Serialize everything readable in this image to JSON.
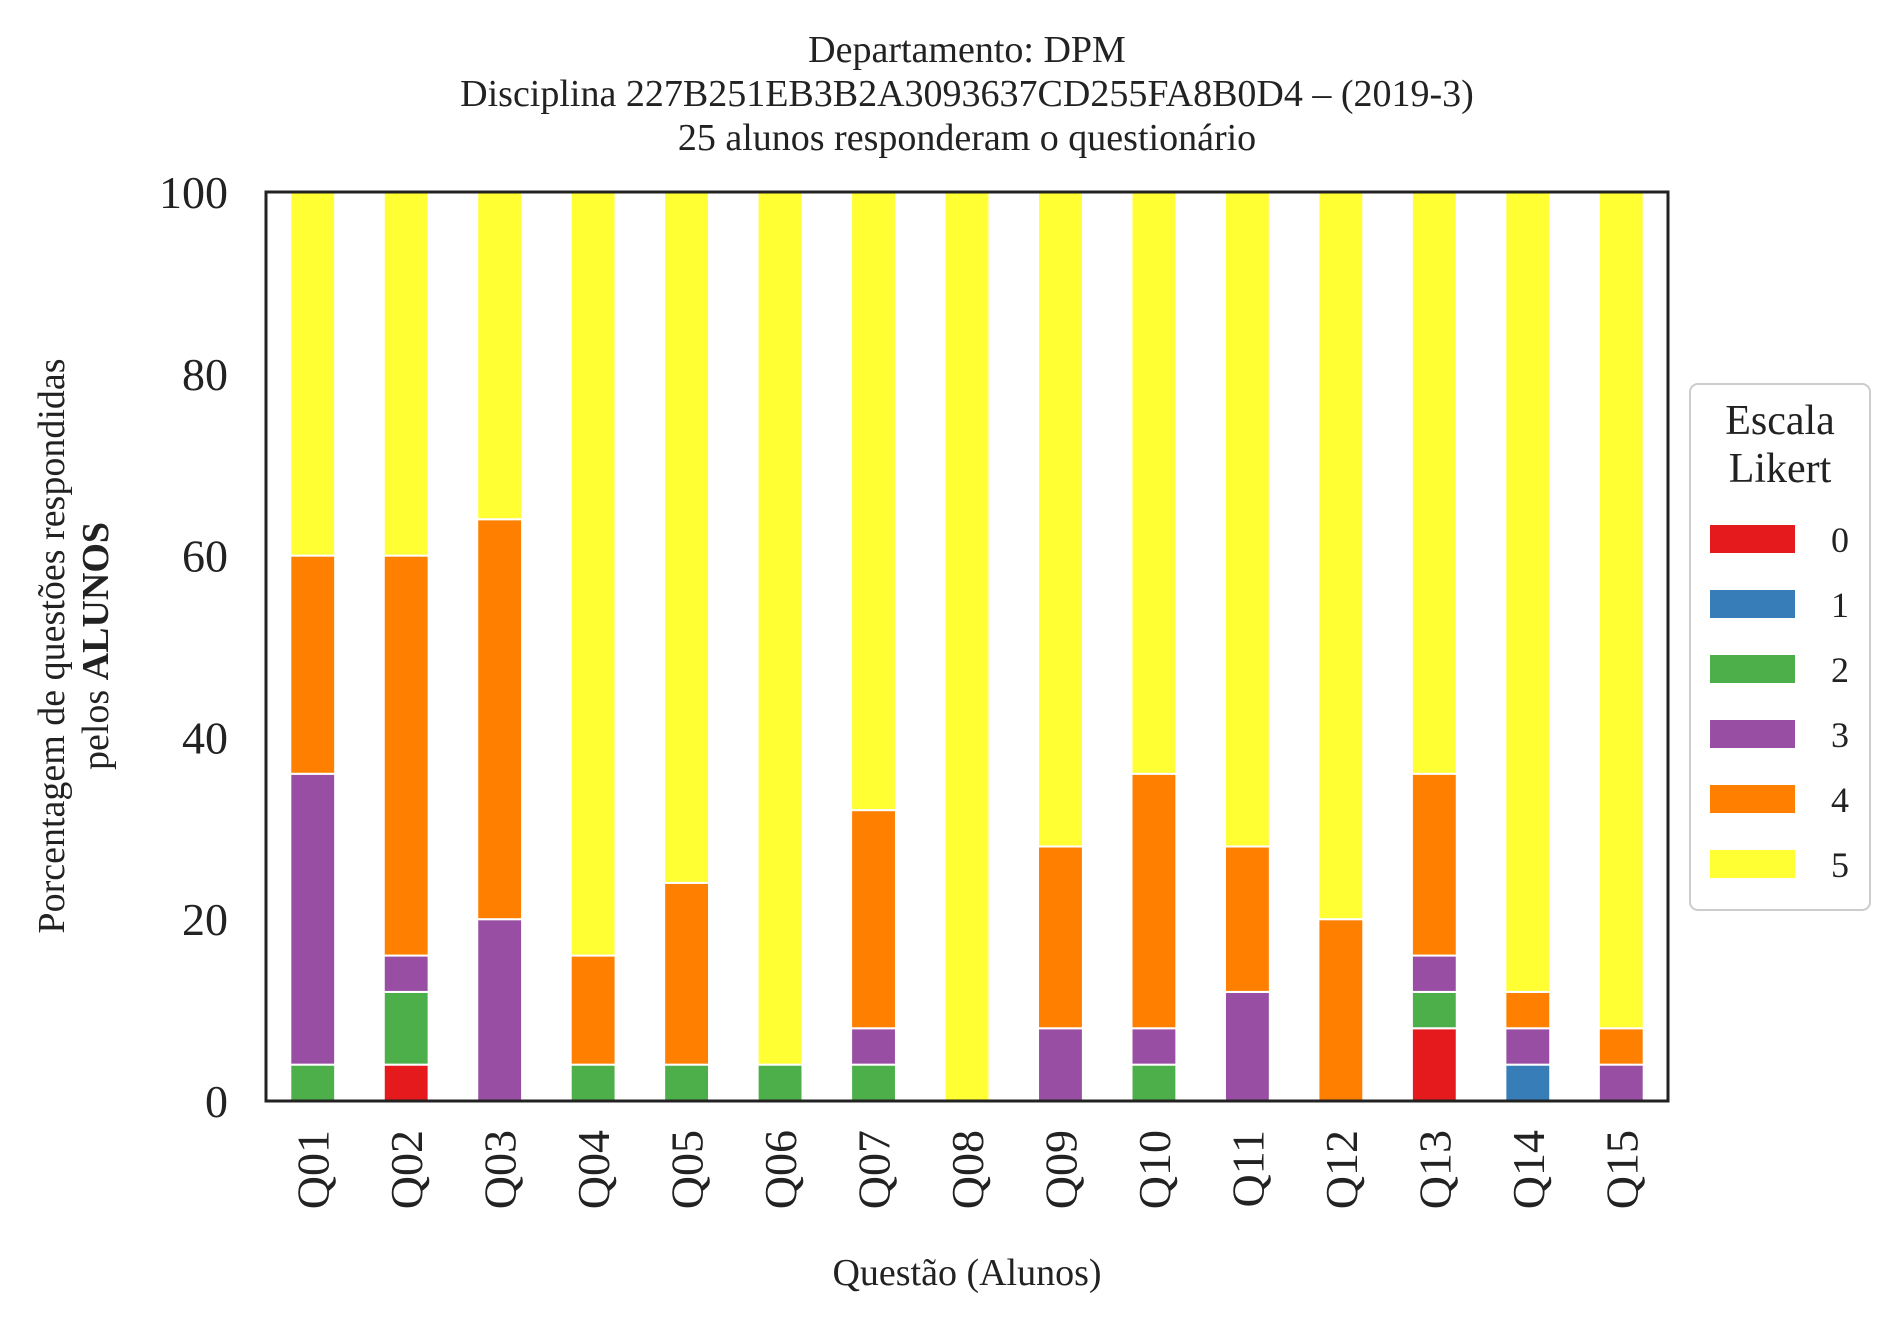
{
  "chart_data": {
    "type": "bar",
    "stacked": true,
    "title_lines": [
      "Departamento: DPM",
      "Disciplina 227B251EB3B2A3093637CD255FA8B0D4 – (2019-3)",
      "25 alunos responderam o questionário"
    ],
    "xlabel": "Questão (Alunos)",
    "ylabel_line1": "Porcentagem de questões respondidas",
    "ylabel_line2_prefix": "pelos ",
    "ylabel_line2_bold": "ALUNOS",
    "ylim": [
      0,
      100
    ],
    "yticks": [
      "0",
      "20",
      "40",
      "60",
      "80",
      "100"
    ],
    "categories": [
      "Q01",
      "Q02",
      "Q03",
      "Q04",
      "Q05",
      "Q06",
      "Q07",
      "Q08",
      "Q09",
      "Q10",
      "Q11",
      "Q12",
      "Q13",
      "Q14",
      "Q15"
    ],
    "series": [
      {
        "name": "0",
        "color": "#e41a1c",
        "values": [
          0,
          4,
          0,
          0,
          0,
          0,
          0,
          0,
          0,
          0,
          0,
          0,
          8,
          0,
          0
        ]
      },
      {
        "name": "1",
        "color": "#377eb8",
        "values": [
          0,
          0,
          0,
          0,
          0,
          0,
          0,
          0,
          0,
          0,
          0,
          0,
          0,
          4,
          0
        ]
      },
      {
        "name": "2",
        "color": "#4daf4a",
        "values": [
          4,
          8,
          0,
          4,
          4,
          4,
          4,
          0,
          0,
          4,
          0,
          0,
          4,
          0,
          0
        ]
      },
      {
        "name": "3",
        "color": "#984ea3",
        "values": [
          32,
          4,
          20,
          0,
          0,
          0,
          4,
          0,
          8,
          4,
          12,
          0,
          4,
          4,
          4
        ]
      },
      {
        "name": "4",
        "color": "#ff7f00",
        "values": [
          24,
          44,
          44,
          12,
          20,
          0,
          24,
          0,
          20,
          28,
          16,
          20,
          20,
          4,
          4
        ]
      },
      {
        "name": "5",
        "color": "#ffff33",
        "values": [
          40,
          40,
          36,
          84,
          76,
          96,
          68,
          100,
          72,
          64,
          72,
          80,
          64,
          88,
          92
        ]
      }
    ],
    "legend": {
      "title_lines": [
        "Escala",
        "Likert"
      ],
      "placement": "right"
    },
    "grid": false
  }
}
